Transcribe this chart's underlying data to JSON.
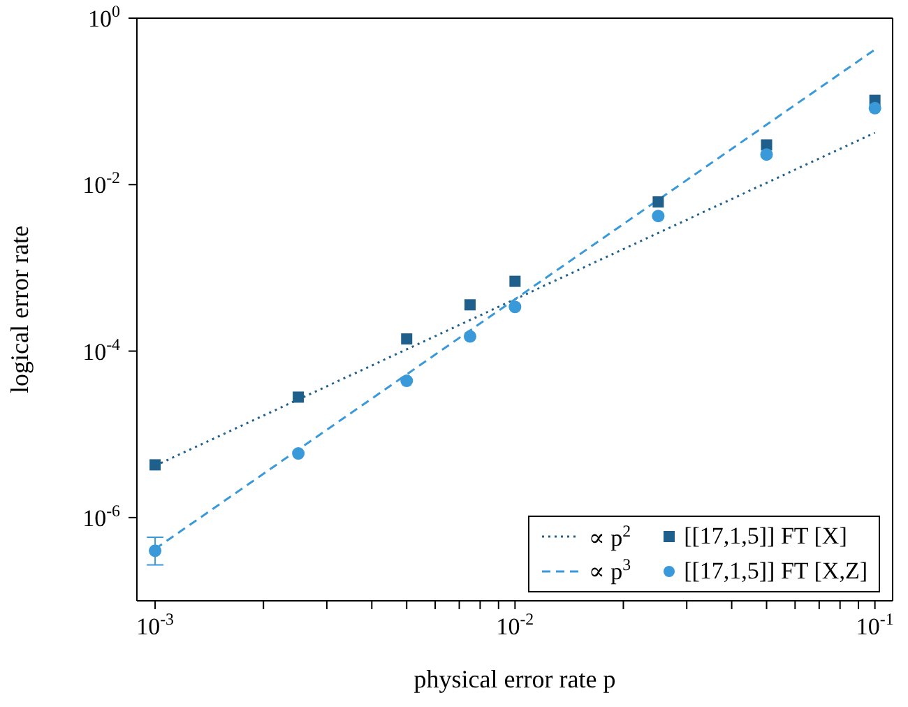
{
  "chart_data": {
    "type": "scatter",
    "xlabel": "physical error rate p",
    "ylabel": "logical error rate",
    "log": "xy",
    "grid": false,
    "legend": "bottom right",
    "xlim": [
      0.00089,
      0.112
    ],
    "ylim": [
      1e-07,
      1
    ],
    "xticks": [
      {
        "value": 0.001,
        "label": "10$^{-3}$"
      },
      {
        "value": 0.002,
        "label": null
      },
      {
        "value": 0.003,
        "label": null
      },
      {
        "value": 0.004,
        "label": null
      },
      {
        "value": 0.005,
        "label": null
      },
      {
        "value": 0.006,
        "label": null
      },
      {
        "value": 0.007,
        "label": null
      },
      {
        "value": 0.008,
        "label": null
      },
      {
        "value": 0.009,
        "label": null
      },
      {
        "value": 0.01,
        "label": "10$^{-2}$"
      },
      {
        "value": 0.02,
        "label": null
      },
      {
        "value": 0.03,
        "label": null
      },
      {
        "value": 0.04,
        "label": null
      },
      {
        "value": 0.05,
        "label": null
      },
      {
        "value": 0.06,
        "label": null
      },
      {
        "value": 0.07,
        "label": null
      },
      {
        "value": 0.08,
        "label": null
      },
      {
        "value": 0.09,
        "label": null
      },
      {
        "value": 0.1,
        "label": "10$^{-1}$"
      }
    ],
    "yticks": [
      {
        "value": 1e-06,
        "label": "10$^{-6}$"
      },
      {
        "value": 0.0001,
        "label": "10$^{-4}$"
      },
      {
        "value": 0.01,
        "label": "10$^{-2}$"
      },
      {
        "value": 1,
        "label": "10$^{0}$"
      }
    ],
    "series": [
      {
        "type": "line",
        "name": "∝ p$^{2}$",
        "color": "#1f5f8b",
        "line_style": "dotted",
        "marker": "none",
        "x": [
          0.001,
          0.1
        ],
        "values": [
          4.2e-06,
          0.042
        ]
      },
      {
        "type": "line",
        "name": "∝ p$^{3}$",
        "color": "#3a9ad9",
        "line_style": "dashed",
        "marker": "none",
        "x": [
          0.001,
          0.1
        ],
        "values": [
          4.2e-07,
          0.42
        ]
      },
      {
        "name": "[[17,1,5]] FT [X]",
        "color": "#1f5f8b",
        "marker": "square",
        "x": [
          0.001,
          0.0025,
          0.005,
          0.0075,
          0.01,
          0.025,
          0.05,
          0.1
        ],
        "values": [
          4.3e-06,
          2.8e-05,
          0.00014,
          0.00036,
          0.00069,
          0.0062,
          0.03,
          0.103
        ]
      },
      {
        "name": "[[17,1,5]] FT [X,Z]",
        "color": "#3a9ad9",
        "marker": "circle",
        "x": [
          0.001,
          0.0025,
          0.005,
          0.0075,
          0.01,
          0.025,
          0.05,
          0.1
        ],
        "values": [
          4e-07,
          5.9e-06,
          4.4e-05,
          0.00015,
          0.00034,
          0.0042,
          0.023,
          0.083
        ],
        "errors": [
          [
            2.7e-07,
            5.8e-07
          ],
          null,
          null,
          null,
          null,
          null,
          null,
          null
        ]
      }
    ]
  }
}
